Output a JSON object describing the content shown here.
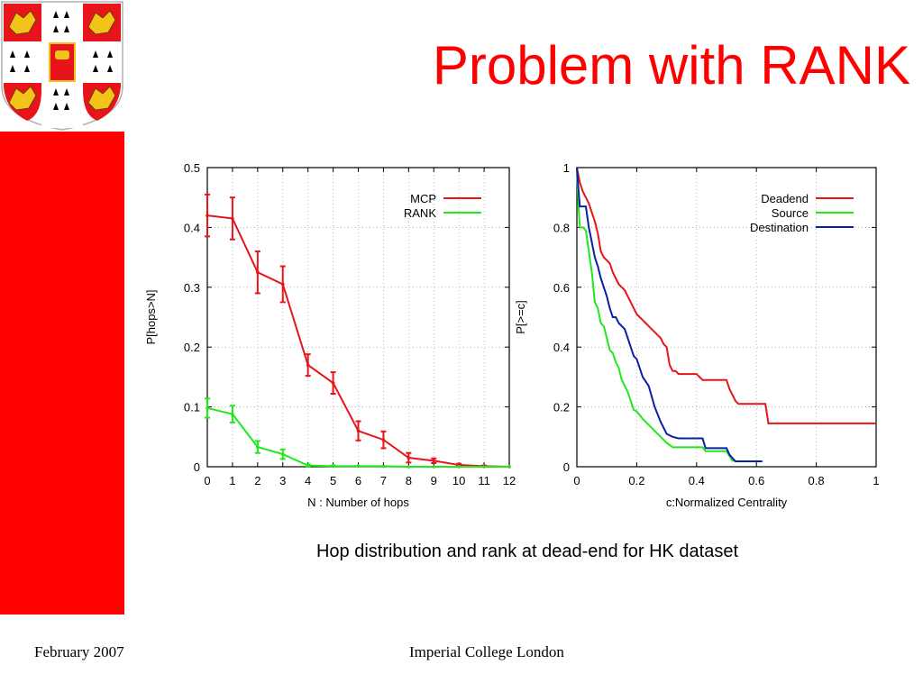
{
  "slide": {
    "title": "Problem with RANK",
    "caption": "Hop distribution and rank at dead-end for HK dataset",
    "footer_left": "February 2007",
    "footer_center": "Imperial College London"
  },
  "colors": {
    "accent": "#ff0000",
    "title": "#ff0000",
    "crest_red": "#e8141b",
    "crest_gold": "#f2c318",
    "grid": "#999999"
  },
  "icons": {
    "logo": "university-coat-of-arms"
  },
  "chart_data": [
    {
      "type": "line",
      "xlabel": "N : Number of hops",
      "ylabel": "P[hops>N]",
      "xlim": [
        0,
        12
      ],
      "ylim": [
        0,
        0.5
      ],
      "x_ticks": [
        "0",
        "1",
        "2",
        "3",
        "4",
        "5",
        "6",
        "7",
        "8",
        "9",
        "10",
        "11",
        "12"
      ],
      "y_ticks": [
        "0",
        "0.1",
        "0.2",
        "0.3",
        "0.4",
        "0.5"
      ],
      "grid": true,
      "legend_position": "top-right",
      "error_bars": true,
      "series": [
        {
          "name": "MCP",
          "color": "#e8141b",
          "x": [
            0,
            1,
            2,
            3,
            4,
            5,
            6,
            7,
            8,
            9,
            10,
            11,
            12
          ],
          "y": [
            0.42,
            0.415,
            0.325,
            0.305,
            0.17,
            0.14,
            0.06,
            0.045,
            0.015,
            0.01,
            0.003,
            0.001,
            0
          ],
          "err": [
            0.035,
            0.035,
            0.035,
            0.03,
            0.018,
            0.018,
            0.016,
            0.014,
            0.008,
            0.004,
            0.002,
            0.001,
            0
          ]
        },
        {
          "name": "RANK",
          "color": "#22e81b",
          "x": [
            0,
            1,
            2,
            3,
            4,
            5,
            6,
            7,
            8,
            9,
            10,
            11,
            12
          ],
          "y": [
            0.098,
            0.088,
            0.033,
            0.021,
            0.002,
            0.001,
            0.001,
            0.001,
            0,
            0,
            0,
            0,
            0
          ],
          "err": [
            0.016,
            0.014,
            0.01,
            0.008,
            0.002,
            0.001,
            0,
            0,
            0,
            0,
            0,
            0,
            0
          ]
        }
      ]
    },
    {
      "type": "line",
      "xlabel": "c:Normalized Centrality",
      "ylabel": "P[>=c]",
      "xlim": [
        0,
        1
      ],
      "ylim": [
        0,
        1
      ],
      "x_ticks": [
        "0",
        "0.2",
        "0.4",
        "0.6",
        "0.8",
        "1"
      ],
      "y_ticks": [
        "0",
        "0.2",
        "0.4",
        "0.6",
        "0.8",
        "1"
      ],
      "grid": true,
      "legend_position": "top-right",
      "series": [
        {
          "name": "Deadend",
          "color": "#e8141b",
          "x": [
            0,
            0.01,
            0.02,
            0.04,
            0.06,
            0.07,
            0.08,
            0.09,
            0.1,
            0.11,
            0.12,
            0.13,
            0.14,
            0.15,
            0.16,
            0.17,
            0.18,
            0.19,
            0.2,
            0.21,
            0.22,
            0.23,
            0.24,
            0.25,
            0.26,
            0.27,
            0.28,
            0.29,
            0.3,
            0.31,
            0.32,
            0.33,
            0.34,
            0.35,
            0.36,
            0.37,
            0.4,
            0.42,
            0.5,
            0.51,
            0.52,
            0.53,
            0.54,
            0.63,
            0.64,
            1
          ],
          "y": [
            1,
            0.95,
            0.92,
            0.88,
            0.82,
            0.78,
            0.72,
            0.7,
            0.69,
            0.68,
            0.65,
            0.63,
            0.61,
            0.6,
            0.59,
            0.57,
            0.55,
            0.53,
            0.51,
            0.5,
            0.49,
            0.48,
            0.47,
            0.46,
            0.45,
            0.44,
            0.43,
            0.41,
            0.4,
            0.34,
            0.32,
            0.32,
            0.31,
            0.31,
            0.31,
            0.31,
            0.31,
            0.29,
            0.29,
            0.26,
            0.24,
            0.22,
            0.21,
            0.21,
            0.145,
            0.145
          ]
        },
        {
          "name": "Source",
          "color": "#22e81b",
          "x": [
            0,
            0.005,
            0.01,
            0.02,
            0.03,
            0.04,
            0.05,
            0.06,
            0.07,
            0.08,
            0.09,
            0.1,
            0.11,
            0.12,
            0.13,
            0.14,
            0.15,
            0.16,
            0.17,
            0.18,
            0.19,
            0.2,
            0.22,
            0.24,
            0.26,
            0.28,
            0.3,
            0.32,
            0.34,
            0.42,
            0.43,
            0.5,
            0.52,
            0.53
          ],
          "y": [
            1,
            0.88,
            0.8,
            0.8,
            0.79,
            0.72,
            0.65,
            0.55,
            0.53,
            0.48,
            0.47,
            0.43,
            0.39,
            0.38,
            0.35,
            0.33,
            0.29,
            0.27,
            0.25,
            0.22,
            0.19,
            0.185,
            0.16,
            0.14,
            0.12,
            0.1,
            0.08,
            0.065,
            0.065,
            0.065,
            0.052,
            0.052,
            0.02,
            0.02
          ]
        },
        {
          "name": "Destination",
          "color": "#0a1fa8",
          "x": [
            0,
            0.005,
            0.01,
            0.03,
            0.04,
            0.05,
            0.06,
            0.07,
            0.08,
            0.09,
            0.1,
            0.11,
            0.12,
            0.13,
            0.14,
            0.15,
            0.16,
            0.17,
            0.18,
            0.19,
            0.2,
            0.22,
            0.24,
            0.26,
            0.28,
            0.3,
            0.32,
            0.34,
            0.36,
            0.42,
            0.43,
            0.5,
            0.51,
            0.53,
            0.62
          ],
          "y": [
            1,
            0.93,
            0.87,
            0.87,
            0.8,
            0.75,
            0.7,
            0.67,
            0.63,
            0.6,
            0.57,
            0.53,
            0.5,
            0.5,
            0.48,
            0.47,
            0.46,
            0.43,
            0.4,
            0.37,
            0.36,
            0.3,
            0.27,
            0.2,
            0.15,
            0.11,
            0.1,
            0.095,
            0.095,
            0.095,
            0.062,
            0.062,
            0.04,
            0.018,
            0.018
          ]
        }
      ]
    }
  ]
}
